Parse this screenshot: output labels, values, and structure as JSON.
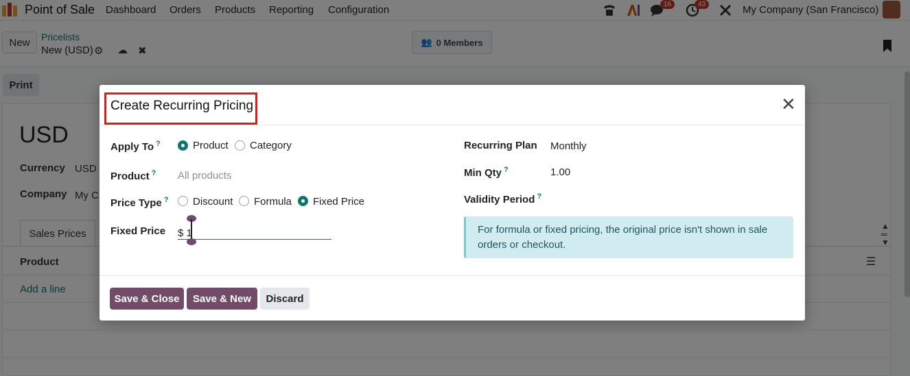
{
  "topnav": {
    "brand": "Point of Sale",
    "menus": [
      "Dashboard",
      "Orders",
      "Products",
      "Reporting",
      "Configuration"
    ],
    "messages_badge": "16",
    "activities_badge": "43",
    "company": "My Company (San Francisco)"
  },
  "control_panel": {
    "new_label": "New",
    "breadcrumb_parent": "Pricelists",
    "breadcrumb_current": "New (USD)",
    "members_label": "0 Members"
  },
  "form": {
    "print_label": "Print",
    "title": "USD",
    "currency_label": "Currency",
    "currency_value": "USD",
    "company_label": "Company",
    "company_value": "My C",
    "tab_label": "Sales Prices",
    "column_product": "Product",
    "add_line": "Add a line"
  },
  "dialog": {
    "title": "Create Recurring Pricing",
    "apply_to_label": "Apply To",
    "apply_to_options": [
      "Product",
      "Category"
    ],
    "apply_to_selected": "Product",
    "product_label": "Product",
    "product_placeholder": "All products",
    "price_type_label": "Price Type",
    "price_type_options": [
      "Discount",
      "Formula",
      "Fixed Price"
    ],
    "price_type_selected": "Fixed Price",
    "fixed_price_label": "Fixed Price",
    "currency_symbol": "$",
    "fixed_price_value": "1",
    "recurring_plan_label": "Recurring Plan",
    "recurring_plan_value": "Monthly",
    "min_qty_label": "Min Qty",
    "min_qty_value": "1.00",
    "validity_label": "Validity Period",
    "help_marker": "?",
    "alert_text": "For formula or fixed pricing, the original price isn't shown in sale orders or checkout.",
    "save_close": "Save & Close",
    "save_new": "Save & New",
    "discard": "Discard"
  },
  "colors": {
    "primary": "#714b67",
    "accent": "#0f766e",
    "highlight_box": "#d91e1e",
    "alert_bg": "#d1ecf1"
  }
}
